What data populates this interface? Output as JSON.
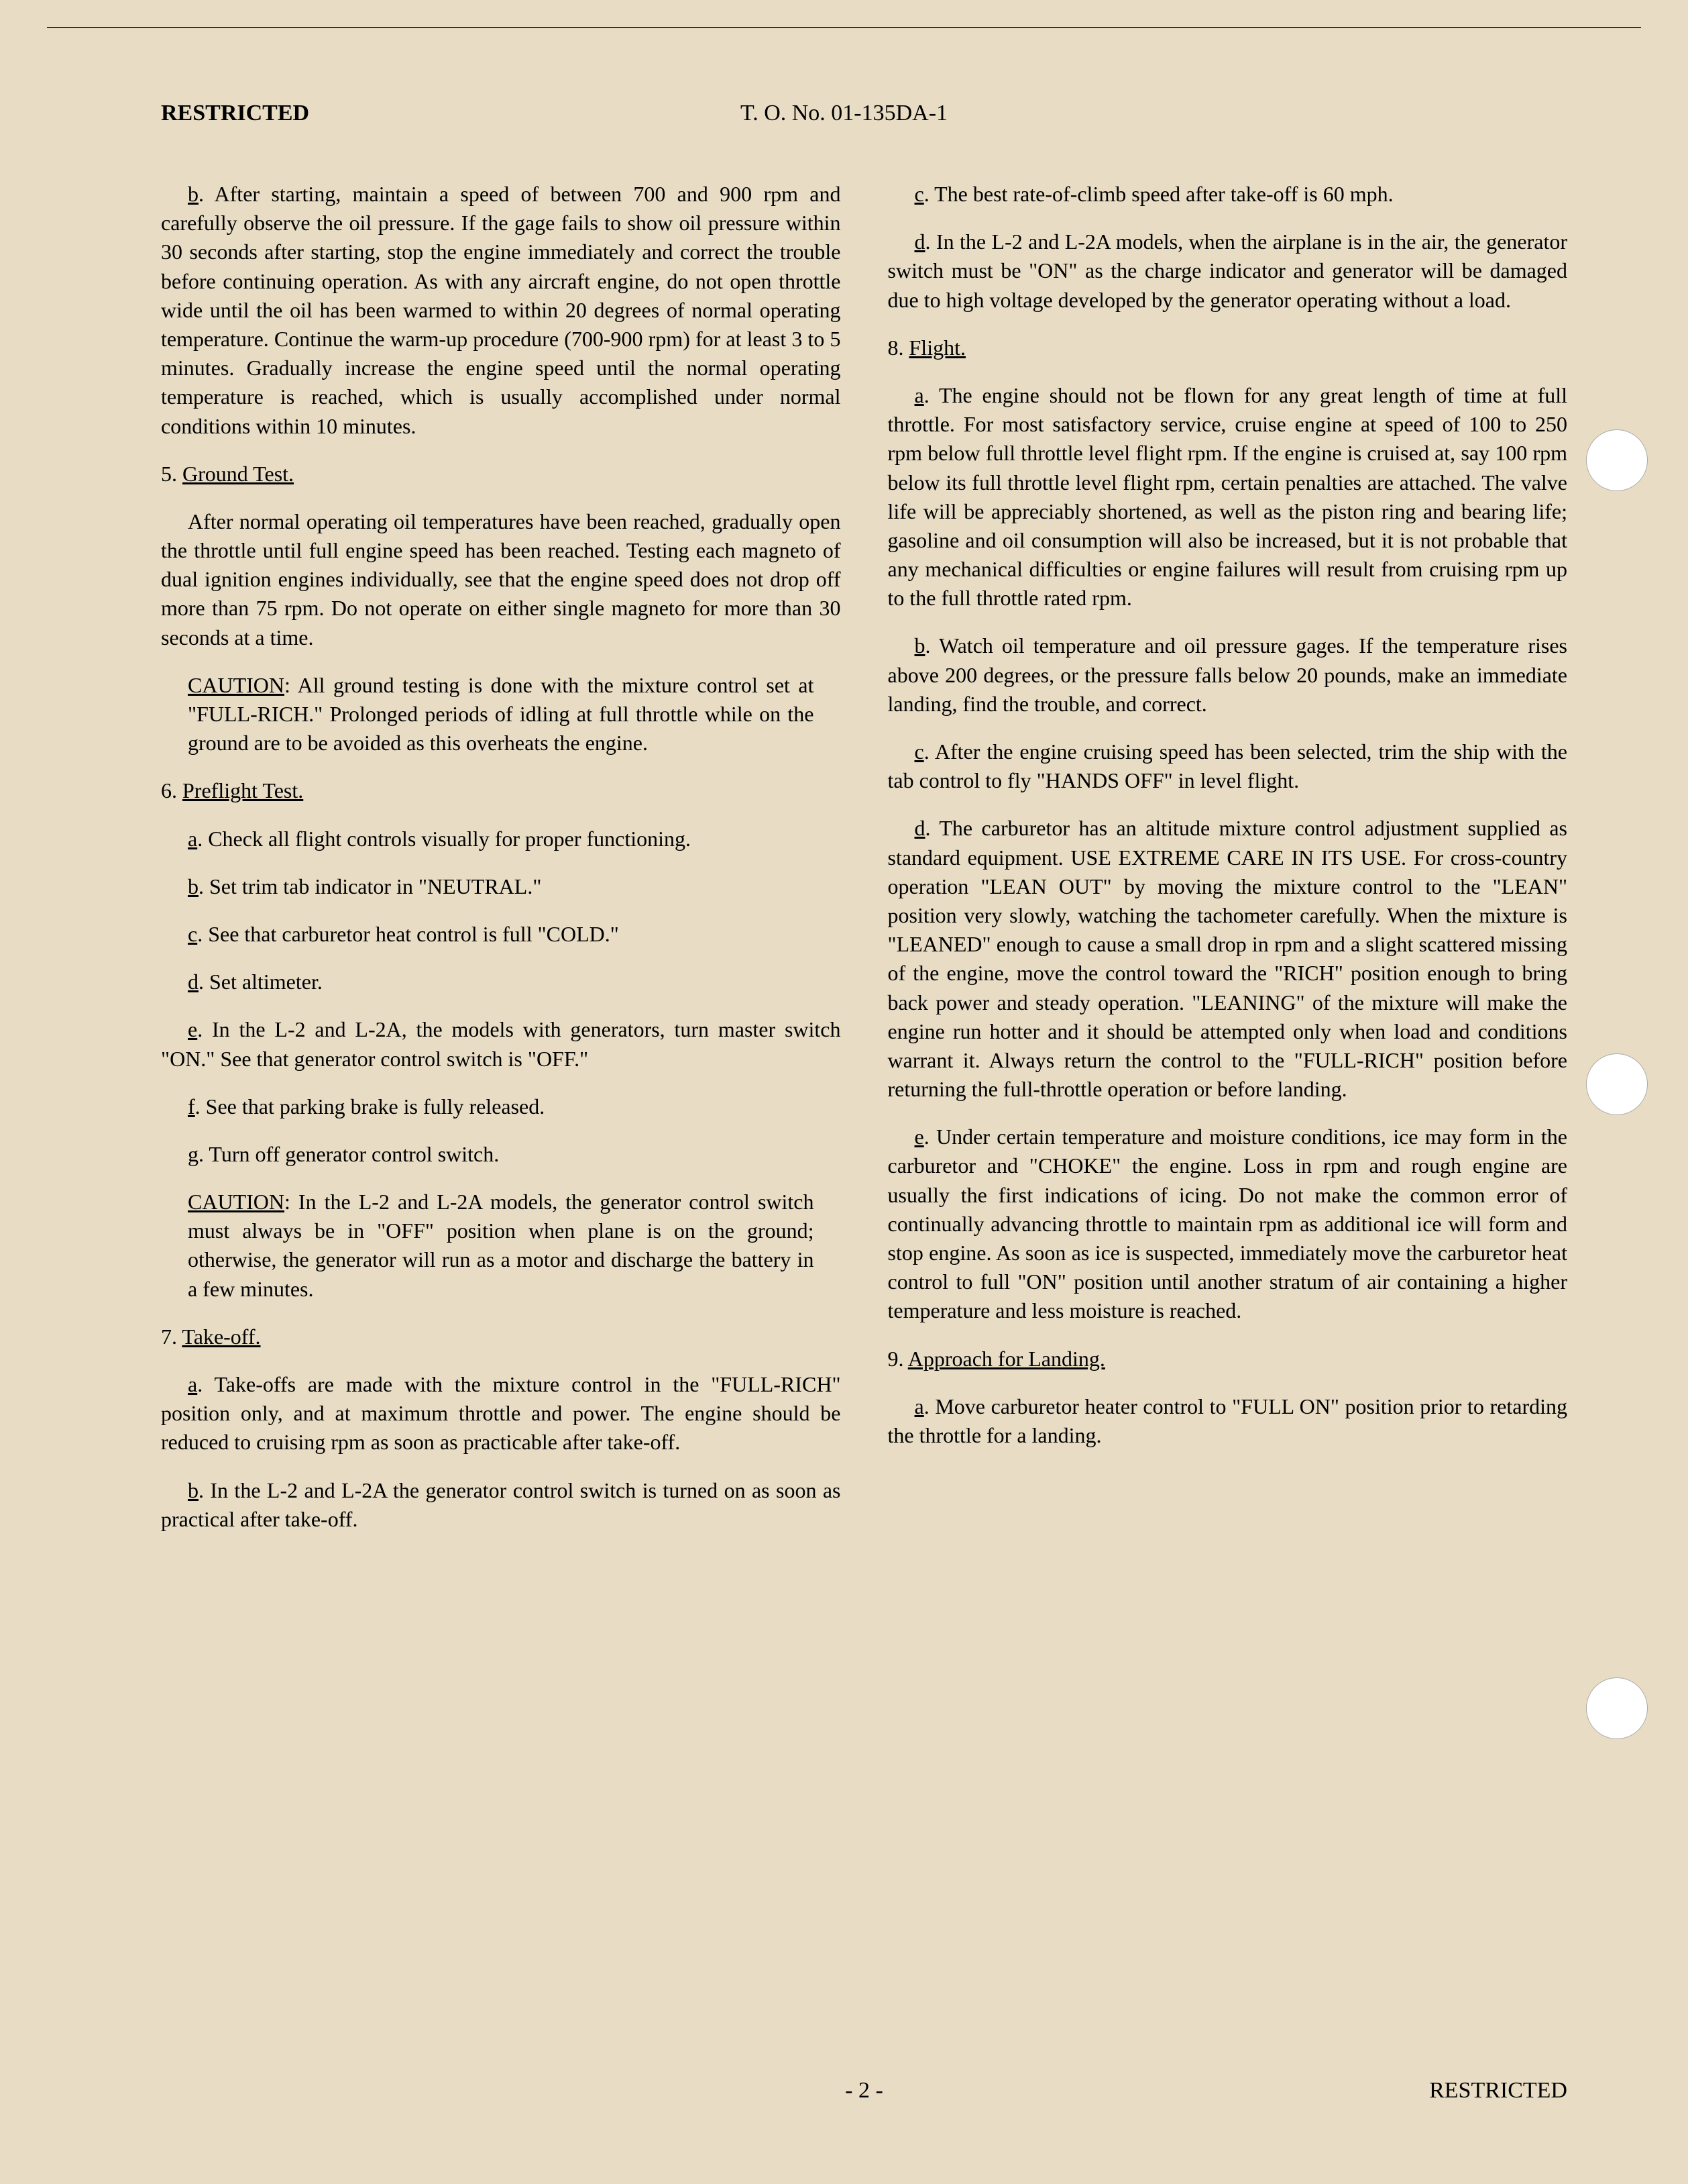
{
  "header": {
    "classification": "RESTRICTED",
    "doc_number": "T. O. No. 01-135DA-1"
  },
  "left_column": {
    "p_b": "After starting, maintain a speed of between 700 and 900 rpm and carefully observe the oil pressure. If the gage fails to show oil pressure within 30 seconds after starting, stop the engine immediately and correct the trouble before continuing operation. As with any aircraft engine, do not open throttle wide until the oil has been warmed to within 20 degrees of normal operating temperature. Continue the warm-up procedure (700-900 rpm) for at least 3 to 5 minutes. Gradually increase the engine speed until the normal operating temperature is reached, which is usually accomplished under normal conditions within 10 minutes.",
    "s5_title": "Ground Test.",
    "s5_body": "After normal operating oil temperatures have been reached, gradually open the throttle until full engine speed has been reached. Testing each magneto of dual ignition engines individually, see that the engine speed does not drop off more than 75 rpm. Do not operate on either single magneto for more than 30 seconds at a time.",
    "s5_caution_label": "CAUTION",
    "s5_caution": ": All ground testing is done with the mixture control set at \"FULL-RICH.\" Prolonged periods of idling at full throttle while on the ground are to be avoided as this overheats the engine.",
    "s6_title": "Preflight Test.",
    "s6_a": "Check all flight controls visually for proper functioning.",
    "s6_b": "Set trim tab indicator in \"NEUTRAL.\"",
    "s6_c": "See that carburetor heat control is full \"COLD.\"",
    "s6_d": "Set altimeter.",
    "s6_e": "In the L-2 and L-2A, the models with generators, turn master switch \"ON.\" See that generator control switch is \"OFF.\"",
    "s6_f": "See that parking brake is fully released.",
    "s6_g": "Turn off generator control switch.",
    "s6_caution_label": "CAUTION",
    "s6_caution": ": In the L-2 and L-2A models, the generator control switch must always be in \"OFF\" position when plane is on the ground; otherwise, the generator will run as a motor and discharge the battery in a few minutes.",
    "s7_title": "Take-off.",
    "s7_a": "Take-offs are made with the mixture control in the \"FULL-RICH\" position only, and at maximum throttle and power. The engine should be reduced to cruising rpm as soon as practicable after take-off.",
    "s7_b": "In the L-2 and L-2A the generator control switch is turned on as soon as practical after take-off."
  },
  "right_column": {
    "s7_c": "The best rate-of-climb speed after take-off is 60 mph.",
    "s7_d": "In the L-2 and L-2A models, when the airplane is in the air, the generator switch must be \"ON\" as the charge indicator and generator will be damaged due to high voltage developed by the generator operating without a load.",
    "s8_title": "Flight.",
    "s8_a": "The engine should not be flown for any great length of time at full throttle. For most satisfactory service, cruise engine at speed of 100 to 250 rpm below full throttle level flight rpm. If the engine is cruised at, say 100 rpm below its full throttle level flight rpm, certain penalties are attached. The valve life will be appreciably shortened, as well as the piston ring and bearing life; gasoline and oil consumption will also be increased, but it is not probable that any mechanical difficulties or engine failures will result from cruising rpm up to the full throttle rated rpm.",
    "s8_b": "Watch oil temperature and oil pressure gages. If the temperature rises above 200 degrees, or the pressure falls below 20 pounds, make an immediate landing, find the trouble, and correct.",
    "s8_c": "After the engine cruising speed has been selected, trim the ship with the tab control to fly \"HANDS OFF\" in level flight.",
    "s8_d": "The carburetor has an altitude mixture control adjustment supplied as standard equipment. USE EXTREME CARE IN ITS USE. For cross-country operation \"LEAN OUT\" by moving the mixture control to the \"LEAN\" position very slowly, watching the tachometer carefully. When the mixture is \"LEANED\" enough to cause a small drop in rpm and a slight scattered missing of the engine, move the control toward the \"RICH\" position enough to bring back power and steady operation. \"LEANING\" of the mixture will make the engine run hotter and it should be attempted only when load and conditions warrant it. Always return the control to the \"FULL-RICH\" position before returning the full-throttle operation or before landing.",
    "s8_e": "Under certain temperature and moisture conditions, ice may form in the carburetor and \"CHOKE\" the engine. Loss in rpm and rough engine are usually the first indications of icing. Do not make the common error of continually advancing throttle to maintain rpm as additional ice will form and stop engine. As soon as ice is suspected, immediately move the carburetor heat control to full \"ON\" position until another stratum of air containing a higher temperature and less moisture is reached.",
    "s9_title": "Approach for Landing.",
    "s9_a": "Move carburetor heater control to \"FULL ON\" position prior to retarding the throttle for a landing."
  },
  "footer": {
    "page": "- 2 -",
    "classification": "RESTRICTED"
  }
}
